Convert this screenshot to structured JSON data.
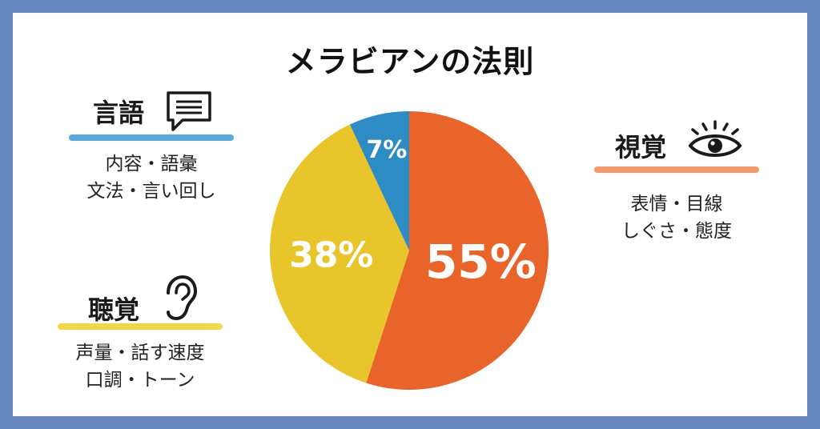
{
  "title": "メラビアンの法則",
  "categories": {
    "verbal": {
      "title": "言語",
      "lines": [
        "内容・語彙",
        "文法・言い回し"
      ],
      "underline_color": "#5aa9d8",
      "icon": "speech-bubble-icon"
    },
    "vocal": {
      "title": "聴覚",
      "lines": [
        "声量・話す速度",
        "口調・トーン"
      ],
      "underline_color": "#f2d64b",
      "icon": "ear-icon"
    },
    "visual": {
      "title": "視覚",
      "lines": [
        "表情・目線",
        "しぐさ・態度"
      ],
      "underline_color": "#f09a6e",
      "icon": "eye-icon"
    }
  },
  "chart_data": {
    "type": "pie",
    "slices": [
      {
        "label": "55%",
        "value": 55,
        "color": "#e8642a"
      },
      {
        "label": "38%",
        "value": 38,
        "color": "#e8c52b"
      },
      {
        "label": "7%",
        "value": 7,
        "color": "#2e8cc4"
      }
    ]
  }
}
